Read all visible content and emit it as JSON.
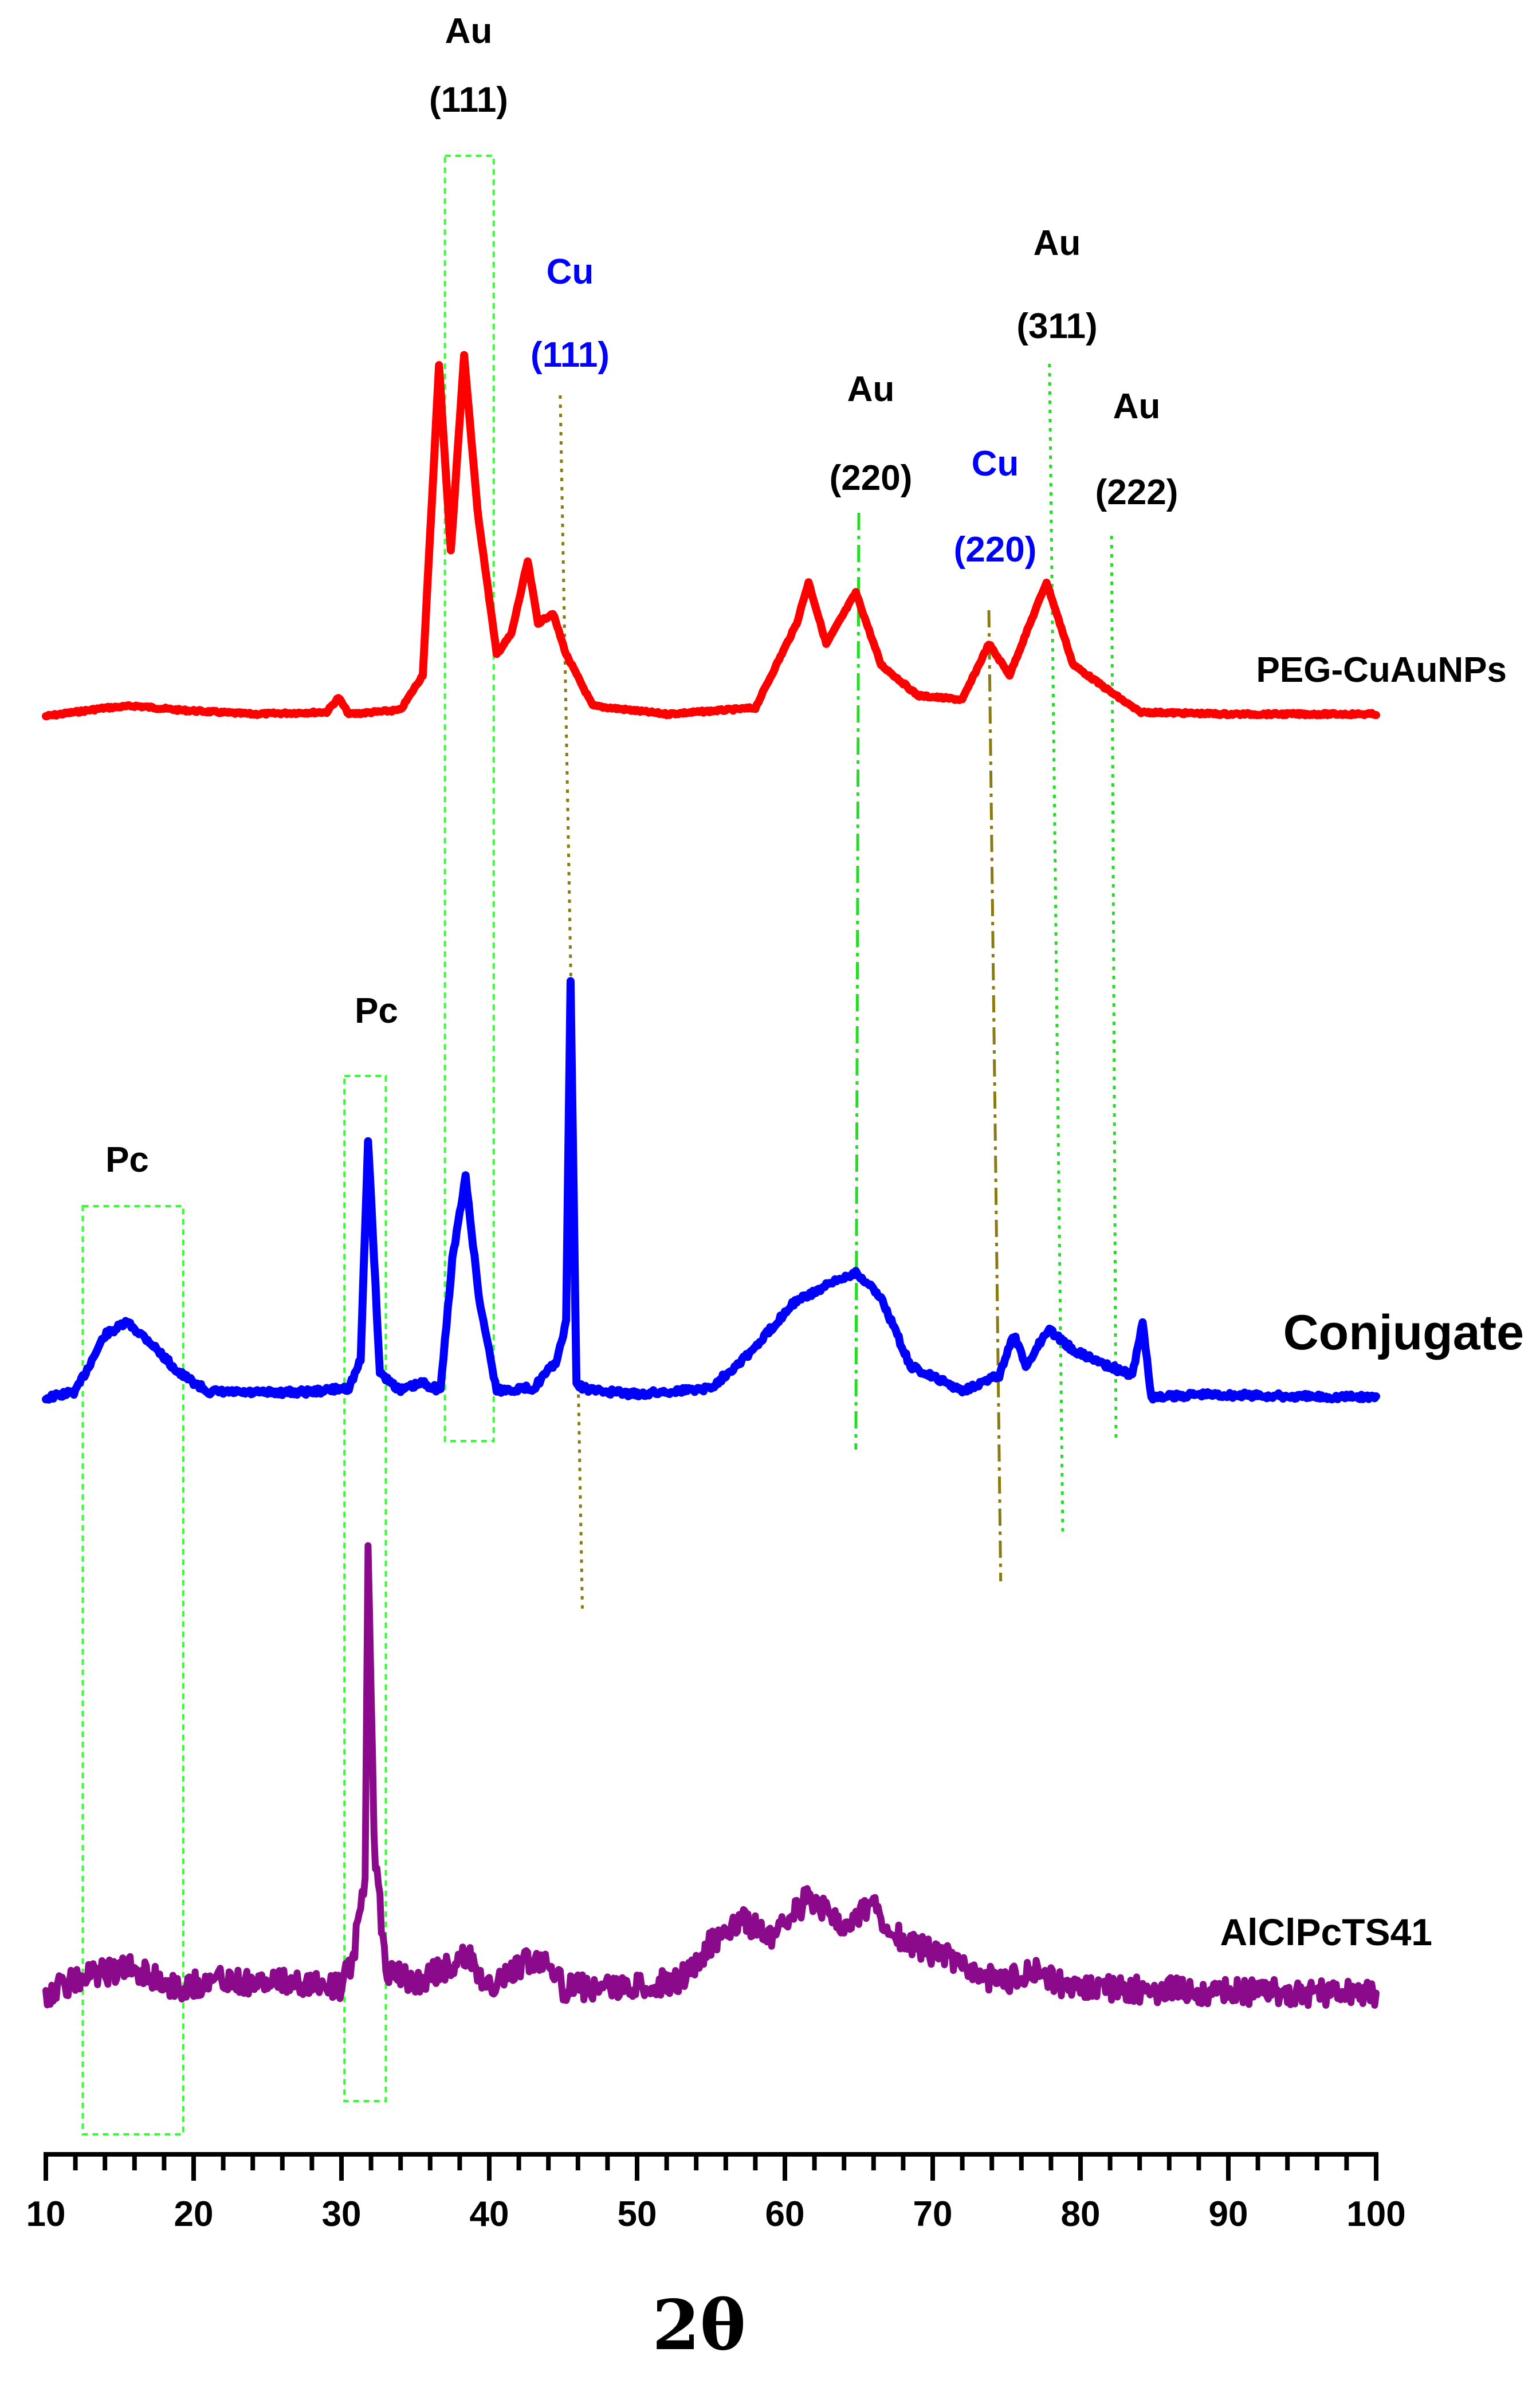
{
  "chart_data": {
    "type": "line",
    "title": "",
    "xlabel": "2θ",
    "ylabel": "",
    "xlim": [
      10,
      100
    ],
    "x_ticks": [
      10,
      20,
      30,
      40,
      50,
      60,
      70,
      80,
      90,
      100
    ],
    "x_tick_labels": [
      "10",
      "20",
      "30",
      "40",
      "50",
      "60",
      "70",
      "80",
      "90",
      "100"
    ],
    "grid": false,
    "legend": "none (series labelled inline at right of each trace)",
    "series": [
      {
        "name": "PEG-CuAuNPs",
        "color": "#ff0000",
        "x": [
          10,
          14,
          16,
          19,
          24,
          29,
          29.8,
          30.5,
          34,
          35.5,
          36.6,
          37.4,
          38.3,
          39.2,
          40.5,
          41.5,
          42.6,
          43.3,
          44.3,
          45.2,
          47,
          52,
          58,
          60.8,
          61.6,
          62.8,
          64.8,
          66.5,
          69,
          72,
          73.8,
          75.2,
          77.7,
          79.5,
          82,
          84,
          90,
          100
        ],
        "values": [
          0,
          4,
          5,
          3,
          1,
          2,
          9,
          1,
          3,
          20,
          170,
          80,
          175,
          100,
          30,
          40,
          75,
          45,
          50,
          30,
          5,
          1,
          4,
          45,
          65,
          35,
          60,
          25,
          10,
          8,
          35,
          20,
          65,
          25,
          12,
          2,
          1,
          1
        ]
      },
      {
        "name": "Conjugate",
        "color": "#0000ff",
        "x": [
          10,
          12,
          14,
          15.5,
          17,
          19,
          21,
          24,
          28,
          30.5,
          31.3,
          31.8,
          32.6,
          34,
          35.5,
          36.7,
          37.5,
          38.4,
          39.3,
          40.5,
          43,
          44.6,
          45.2,
          45.5,
          45.9,
          47,
          50,
          55,
          58,
          60.5,
          63,
          64.8,
          66.5,
          68.5,
          72,
          74.5,
          75.5,
          76.3,
          77.8,
          79.5,
          82,
          83.5,
          84.2,
          84.8,
          88,
          95,
          100
        ],
        "values": [
          0,
          5,
          50,
          60,
          45,
          20,
          5,
          4,
          5,
          8,
          30,
          205,
          20,
          6,
          12,
          6,
          110,
          175,
          80,
          6,
          8,
          30,
          60,
          330,
          10,
          6,
          3,
          8,
          40,
          75,
          90,
          100,
          80,
          25,
          6,
          18,
          50,
          25,
          55,
          38,
          25,
          18,
          60,
          0,
          3,
          1,
          1
        ]
      },
      {
        "name": "AlClPcTS41",
        "color": "#8b0a8b",
        "x": [
          10,
          13,
          16,
          19,
          22,
          25,
          28,
          30,
          30.8,
          31.2,
          31.6,
          31.8,
          32.2,
          33,
          35,
          38.5,
          40,
          42.5,
          43.9,
          45,
          50,
          53,
          55,
          57,
          59,
          61.5,
          64,
          66,
          68,
          71,
          73,
          75,
          77,
          79,
          85,
          100
        ],
        "values": [
          0,
          15,
          20,
          5,
          12,
          8,
          10,
          5,
          30,
          60,
          85,
          365,
          120,
          20,
          8,
          30,
          5,
          25,
          30,
          5,
          5,
          12,
          40,
          60,
          45,
          75,
          55,
          70,
          40,
          30,
          15,
          10,
          20,
          5,
          3,
          0
        ]
      }
    ],
    "series_labels": [
      "PEG-CuAuNPs",
      "Conjugate",
      "AlClPcTS41"
    ],
    "annotations": [
      {
        "id": "au111",
        "lines": [
          "Au",
          "(111)"
        ],
        "color": "#000000"
      },
      {
        "id": "cu111",
        "lines": [
          "Cu",
          "(111)"
        ],
        "color": "#0000ff"
      },
      {
        "id": "au220",
        "lines": [
          "Au",
          "(220)"
        ],
        "color": "#000000"
      },
      {
        "id": "cu220",
        "lines": [
          "Cu",
          "(220)"
        ],
        "color": "#0000ff"
      },
      {
        "id": "au311",
        "lines": [
          "Au",
          "(311)"
        ],
        "color": "#000000"
      },
      {
        "id": "au222",
        "lines": [
          "Au",
          "(222)"
        ],
        "color": "#000000"
      },
      {
        "id": "pc1",
        "lines": [
          "Pc"
        ],
        "color": "#000000"
      },
      {
        "id": "pc2",
        "lines": [
          "Pc"
        ],
        "color": "#000000"
      }
    ],
    "marker_colors": {
      "boxes": "#33ff33",
      "au_lines": "#22dd22",
      "cu_lines": "#8a7a10"
    }
  }
}
